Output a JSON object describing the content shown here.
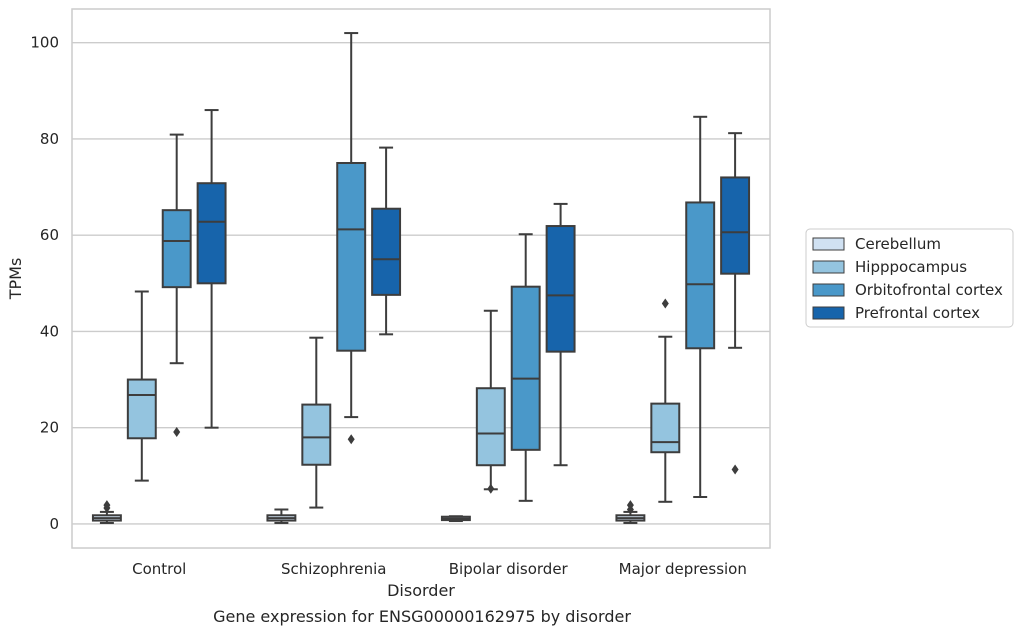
{
  "chart_data": {
    "type": "box",
    "title": "",
    "caption": "Gene expression for ENSG00000162975 by disorder",
    "xlabel": "Disorder",
    "ylabel": "TPMs",
    "ylim": [
      -5,
      107
    ],
    "yticks": [
      0,
      20,
      40,
      60,
      80,
      100
    ],
    "grid": "horizontal",
    "legend_position": "right",
    "categories": [
      "Control",
      "Schizophrenia",
      "Bipolar disorder",
      "Major depression"
    ],
    "series": [
      {
        "name": "Cerebellum",
        "color": "#d0e1f2",
        "boxes": [
          {
            "whisker_low": 0.2,
            "q1": 0.7,
            "median": 1.2,
            "q3": 1.8,
            "whisker_high": 2.5,
            "outliers": [
              3.3,
              3.9
            ]
          },
          {
            "whisker_low": 0.2,
            "q1": 0.7,
            "median": 1.2,
            "q3": 1.8,
            "whisker_high": 3.0,
            "outliers": []
          },
          {
            "whisker_low": 0.6,
            "q1": 0.8,
            "median": 1.1,
            "q3": 1.5,
            "whisker_high": 1.6,
            "outliers": []
          },
          {
            "whisker_low": 0.2,
            "q1": 0.7,
            "median": 1.2,
            "q3": 1.8,
            "whisker_high": 2.5,
            "outliers": [
              3.0,
              3.9
            ]
          }
        ]
      },
      {
        "name": "Hipppocampus",
        "color": "#94c4df",
        "boxes": [
          {
            "whisker_low": 9.0,
            "q1": 17.8,
            "median": 26.8,
            "q3": 30.0,
            "whisker_high": 48.3,
            "outliers": []
          },
          {
            "whisker_low": 3.4,
            "q1": 12.3,
            "median": 18.0,
            "q3": 24.8,
            "whisker_high": 38.7,
            "outliers": []
          },
          {
            "whisker_low": 7.2,
            "q1": 12.2,
            "median": 18.8,
            "q3": 28.2,
            "whisker_high": 44.3,
            "outliers": [
              7.3
            ]
          },
          {
            "whisker_low": 4.6,
            "q1": 14.9,
            "median": 17.0,
            "q3": 25.0,
            "whisker_high": 38.9,
            "outliers": [
              45.8
            ]
          }
        ]
      },
      {
        "name": "Orbitofrontal cortex",
        "color": "#4a98c9",
        "boxes": [
          {
            "whisker_low": 33.4,
            "q1": 49.2,
            "median": 58.8,
            "q3": 65.2,
            "whisker_high": 80.9,
            "outliers": [
              19.1
            ]
          },
          {
            "whisker_low": 22.2,
            "q1": 36.0,
            "median": 61.2,
            "q3": 75.0,
            "whisker_high": 102.0,
            "outliers": [
              17.6
            ]
          },
          {
            "whisker_low": 4.8,
            "q1": 15.4,
            "median": 30.2,
            "q3": 49.3,
            "whisker_high": 60.2,
            "outliers": []
          },
          {
            "whisker_low": 5.6,
            "q1": 36.5,
            "median": 49.8,
            "q3": 66.8,
            "whisker_high": 84.6,
            "outliers": []
          }
        ]
      },
      {
        "name": "Prefrontal cortex",
        "color": "#1764ab",
        "boxes": [
          {
            "whisker_low": 20.0,
            "q1": 50.0,
            "median": 62.8,
            "q3": 70.8,
            "whisker_high": 86.0,
            "outliers": []
          },
          {
            "whisker_low": 39.4,
            "q1": 47.6,
            "median": 55.0,
            "q3": 65.5,
            "whisker_high": 78.2,
            "outliers": []
          },
          {
            "whisker_low": 12.2,
            "q1": 35.8,
            "median": 47.5,
            "q3": 61.9,
            "whisker_high": 66.5,
            "outliers": []
          },
          {
            "whisker_low": 36.6,
            "q1": 52.0,
            "median": 60.6,
            "q3": 72.0,
            "whisker_high": 81.2,
            "outliers": [
              11.3
            ]
          }
        ]
      }
    ]
  }
}
